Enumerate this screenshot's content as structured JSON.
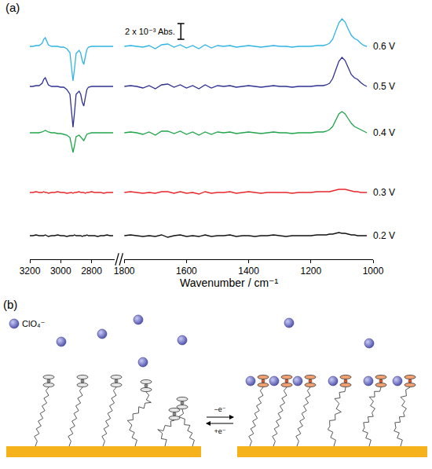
{
  "chart_data": {
    "type": "line",
    "panel_label": "(a)",
    "x_label": "Wavenumber / cm⁻¹",
    "xlim": [
      3200,
      1000
    ],
    "xbreak": [
      2650,
      1800
    ],
    "xticks": [
      3200,
      3000,
      2800,
      1800,
      1600,
      1400,
      1200,
      1000
    ],
    "ylim": [
      0,
      31
    ],
    "yticks": [],
    "tick_labels": "x",
    "grid": false,
    "scale_bar": {
      "value": 2,
      "label": "2 x 10⁻³ Abs."
    },
    "x": [
      3200,
      3180,
      3160,
      3140,
      3120,
      3110,
      3100,
      3090,
      3080,
      3060,
      3040,
      3020,
      3000,
      2980,
      2960,
      2940,
      2930,
      2920,
      2910,
      2900,
      2880,
      2870,
      2860,
      2850,
      2840,
      2830,
      2820,
      2800,
      2780,
      2760,
      2740,
      2720,
      2700,
      2680,
      2660,
      1800,
      1780,
      1760,
      1740,
      1720,
      1700,
      1680,
      1660,
      1640,
      1620,
      1600,
      1580,
      1560,
      1540,
      1520,
      1500,
      1480,
      1460,
      1440,
      1420,
      1400,
      1380,
      1360,
      1340,
      1320,
      1300,
      1280,
      1260,
      1240,
      1220,
      1200,
      1180,
      1160,
      1150,
      1140,
      1130,
      1120,
      1110,
      1100,
      1090,
      1080,
      1070,
      1060,
      1050,
      1040,
      1030,
      1020
    ],
    "series": [
      {
        "name": "0.6 V",
        "color": "#2fb4e6",
        "values": [
          27.1,
          27.1,
          27.2,
          27.2,
          27.5,
          28.0,
          28.2,
          27.8,
          27.3,
          27.1,
          27.1,
          27.1,
          27.0,
          27.0,
          26.8,
          26.3,
          24.5,
          22.7,
          24.3,
          26.2,
          26.6,
          26.2,
          25.3,
          24.8,
          25.8,
          26.7,
          27.0,
          27.1,
          27.1,
          27.1,
          27.1,
          27.1,
          27.1,
          27.1,
          27.1,
          27.1,
          27.2,
          27.1,
          27.0,
          27.2,
          26.8,
          27.3,
          27.4,
          27.0,
          27.3,
          26.9,
          27.2,
          26.8,
          27.3,
          26.9,
          27.2,
          27.1,
          27.2,
          27.0,
          27.1,
          27.2,
          27.1,
          27.0,
          27.1,
          27.2,
          27.1,
          27.1,
          27.0,
          27.1,
          27.1,
          27.1,
          27.2,
          27.2,
          27.3,
          27.5,
          28.0,
          29.0,
          30.1,
          30.6,
          30.2,
          29.3,
          28.5,
          28.1,
          27.9,
          27.5,
          27.2,
          27.1
        ]
      },
      {
        "name": "0.5 V",
        "color": "#2e3192",
        "values": [
          22.0,
          22.0,
          22.1,
          22.1,
          22.4,
          22.9,
          23.1,
          22.7,
          22.2,
          22.0,
          22.0,
          22.0,
          21.9,
          21.9,
          21.6,
          21.0,
          18.9,
          16.8,
          18.7,
          21.0,
          21.4,
          21.0,
          20.0,
          19.5,
          20.6,
          21.6,
          21.9,
          22.0,
          22.0,
          22.0,
          22.0,
          22.0,
          22.0,
          22.0,
          22.0,
          22.0,
          22.1,
          22.0,
          21.8,
          22.1,
          21.7,
          22.2,
          22.3,
          21.9,
          22.2,
          21.8,
          22.1,
          21.7,
          22.2,
          21.8,
          22.1,
          22.0,
          22.1,
          21.9,
          22.0,
          22.1,
          22.0,
          21.9,
          22.0,
          22.1,
          22.0,
          22.0,
          21.9,
          22.0,
          22.0,
          22.0,
          22.1,
          22.1,
          22.2,
          22.4,
          23.0,
          24.0,
          25.2,
          25.7,
          25.3,
          24.4,
          23.5,
          23.1,
          22.9,
          22.5,
          22.2,
          22.0
        ]
      },
      {
        "name": "0.4 V",
        "color": "#1fa64a",
        "values": [
          16.1,
          16.1,
          16.1,
          16.1,
          16.2,
          16.3,
          16.4,
          16.3,
          16.2,
          16.1,
          16.1,
          16.0,
          16.0,
          15.9,
          15.8,
          15.5,
          14.6,
          13.6,
          14.5,
          15.6,
          15.8,
          15.6,
          15.3,
          15.1,
          15.5,
          15.9,
          16.0,
          16.1,
          16.1,
          16.1,
          16.1,
          16.1,
          16.1,
          16.1,
          16.1,
          16.1,
          16.2,
          16.1,
          15.9,
          16.2,
          15.8,
          16.3,
          16.3,
          16.0,
          16.3,
          15.9,
          16.2,
          15.8,
          16.2,
          15.9,
          16.2,
          16.1,
          16.2,
          16.0,
          16.1,
          16.2,
          16.1,
          16.0,
          16.1,
          16.2,
          16.1,
          16.1,
          16.0,
          16.1,
          16.1,
          16.1,
          16.2,
          16.2,
          16.3,
          16.5,
          16.9,
          17.7,
          18.5,
          18.8,
          18.5,
          17.9,
          17.3,
          16.9,
          16.7,
          16.5,
          16.3,
          16.1
        ]
      },
      {
        "name": "0.3 V",
        "color": "#e8262a",
        "values": [
          8.5,
          8.5,
          8.6,
          8.5,
          8.5,
          8.6,
          8.5,
          8.5,
          8.4,
          8.5,
          8.5,
          8.6,
          8.5,
          8.5,
          8.4,
          8.5,
          8.5,
          8.4,
          8.5,
          8.5,
          8.6,
          8.5,
          8.5,
          8.5,
          8.4,
          8.5,
          8.5,
          8.6,
          8.5,
          8.5,
          8.5,
          8.4,
          8.5,
          8.5,
          8.5,
          8.5,
          8.6,
          8.5,
          8.4,
          8.5,
          8.4,
          8.6,
          8.6,
          8.4,
          8.6,
          8.4,
          8.5,
          8.3,
          8.6,
          8.4,
          8.5,
          8.5,
          8.6,
          8.4,
          8.5,
          8.6,
          8.5,
          8.4,
          8.5,
          8.5,
          8.5,
          8.5,
          8.4,
          8.5,
          8.5,
          8.5,
          8.6,
          8.6,
          8.6,
          8.6,
          8.7,
          8.8,
          8.9,
          8.9,
          8.9,
          8.8,
          8.7,
          8.6,
          8.6,
          8.5,
          8.5,
          8.5
        ]
      },
      {
        "name": "0.2 V",
        "color": "#111111",
        "values": [
          3.0,
          3.0,
          3.1,
          3.0,
          3.0,
          3.0,
          3.1,
          3.0,
          2.9,
          3.0,
          3.0,
          3.1,
          3.0,
          3.0,
          2.9,
          3.0,
          3.0,
          3.0,
          3.1,
          3.0,
          3.0,
          3.0,
          2.9,
          3.0,
          3.0,
          3.1,
          3.0,
          3.0,
          3.0,
          2.9,
          3.0,
          3.0,
          3.1,
          3.0,
          3.0,
          3.0,
          3.1,
          3.0,
          2.9,
          3.0,
          2.9,
          3.1,
          2.8,
          3.0,
          3.1,
          2.9,
          3.0,
          2.9,
          3.1,
          2.9,
          3.0,
          3.0,
          3.1,
          2.9,
          3.0,
          3.0,
          2.9,
          3.0,
          3.0,
          3.1,
          3.0,
          2.9,
          3.0,
          3.0,
          3.0,
          3.0,
          3.1,
          3.1,
          3.1,
          3.2,
          3.2,
          3.3,
          3.4,
          3.3,
          3.3,
          3.2,
          3.1,
          3.1,
          3.0,
          3.0,
          3.0,
          3.0
        ]
      }
    ]
  },
  "diagram": {
    "panel_label": "(b)",
    "anion_label": "ClO₄⁻",
    "arrow_labels": [
      "−e⁻",
      "+e⁻"
    ]
  }
}
